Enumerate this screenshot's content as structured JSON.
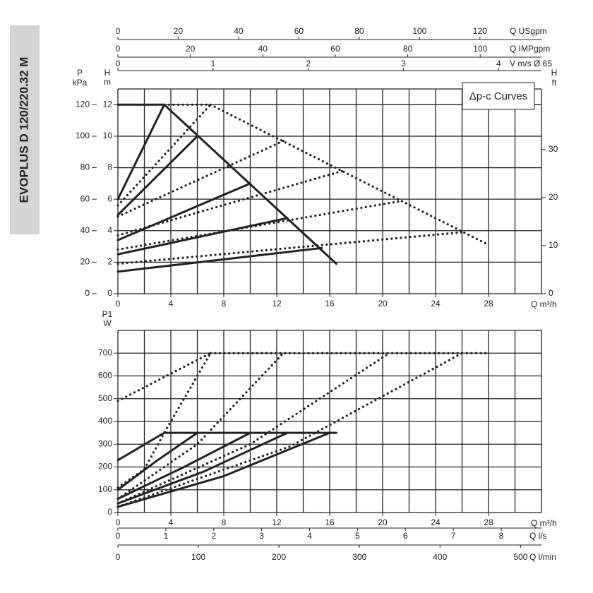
{
  "side_title": "EVOPLUS D 120/220.32 M",
  "chart_data": [
    {
      "type": "line",
      "annotation": "Δp-c Curves",
      "xlabel": "Q m³/h",
      "xlim": [
        0,
        32
      ],
      "xticks": [
        0,
        4,
        8,
        12,
        16,
        20,
        24,
        28
      ],
      "xgrid_step": 2,
      "ylabel": "H",
      "yunit": "m",
      "ylim": [
        0,
        13
      ],
      "yticks": [
        0,
        2,
        4,
        6,
        8,
        10,
        12
      ],
      "grid": true,
      "color": "#222222",
      "axes": [
        {
          "label": "Q USgpm",
          "side": "top",
          "lim": [
            0,
            140.4
          ],
          "ticks": [
            0,
            20,
            40,
            60,
            80,
            100,
            120
          ]
        },
        {
          "label": "Q IMPgpm",
          "side": "top",
          "lim": [
            0,
            116.9
          ],
          "ticks": [
            0,
            20,
            40,
            60,
            80,
            100
          ]
        },
        {
          "label": "V m/s Ø 65",
          "side": "top",
          "lim": [
            0,
            4.45
          ],
          "ticks": [
            0,
            1,
            2,
            3,
            4
          ]
        },
        {
          "label": "P",
          "unit": "kPa",
          "side": "left",
          "lim": [
            0,
            130
          ],
          "ticks": [
            0,
            20,
            40,
            60,
            80,
            100,
            120
          ]
        },
        {
          "label": "H",
          "unit": "ft",
          "side": "right",
          "lim": [
            0,
            42.65
          ],
          "ticks": [
            0,
            10,
            20,
            30
          ]
        }
      ],
      "series": [
        {
          "style": "solid",
          "x": [
            0,
            3.5
          ],
          "values": [
            12,
            12
          ]
        },
        {
          "style": "solid",
          "x": [
            3.5,
            16.5
          ],
          "values": [
            12,
            1.9
          ]
        },
        {
          "style": "solid",
          "x": [
            0,
            3.5
          ],
          "values": [
            6,
            12
          ]
        },
        {
          "style": "solid",
          "x": [
            0,
            6
          ],
          "values": [
            5,
            10
          ]
        },
        {
          "style": "solid",
          "x": [
            0,
            10
          ],
          "values": [
            3.4,
            7
          ]
        },
        {
          "style": "solid",
          "x": [
            0,
            12.8
          ],
          "values": [
            2.5,
            4.8
          ]
        },
        {
          "style": "solid",
          "x": [
            0,
            15.4
          ],
          "values": [
            1.4,
            2.9
          ]
        },
        {
          "style": "dotted",
          "x": [
            3.5,
            7
          ],
          "values": [
            12,
            12
          ]
        },
        {
          "style": "dotted",
          "x": [
            7,
            28
          ],
          "values": [
            12,
            3.1
          ]
        },
        {
          "style": "dotted",
          "x": [
            0,
            7
          ],
          "values": [
            5.6,
            12
          ]
        },
        {
          "style": "dotted",
          "x": [
            0,
            12.5
          ],
          "values": [
            4.9,
            9.7
          ]
        },
        {
          "style": "dotted",
          "x": [
            0,
            17
          ],
          "values": [
            3.7,
            7.8
          ]
        },
        {
          "style": "dotted",
          "x": [
            0,
            21.5
          ],
          "values": [
            2.8,
            5.9
          ]
        },
        {
          "style": "dotted",
          "x": [
            0,
            26
          ],
          "values": [
            1.9,
            3.9
          ]
        }
      ]
    },
    {
      "type": "line",
      "xlabel": "Q m³/h",
      "xlim": [
        0,
        32
      ],
      "xticks": [
        0,
        4,
        8,
        12,
        16,
        20,
        24,
        28
      ],
      "xgrid_step": 2,
      "ylabel": "P1",
      "yunit": "W",
      "ylim": [
        0,
        800
      ],
      "yticks": [
        0,
        100,
        200,
        300,
        400,
        500,
        600,
        700
      ],
      "grid": true,
      "color": "#222222",
      "axes": [
        {
          "label": "Q l/s",
          "side": "bottom",
          "lim": [
            0,
            8.84
          ],
          "ticks": [
            0,
            1,
            2,
            3,
            4,
            5,
            6,
            7,
            8
          ]
        },
        {
          "label": "Q l/min",
          "side": "bottom",
          "lim": [
            0,
            526
          ],
          "ticks": [
            0,
            100,
            200,
            300,
            400,
            500
          ]
        }
      ],
      "series": [
        {
          "style": "solid",
          "x": [
            3.5,
            16.5
          ],
          "values": [
            350,
            350
          ]
        },
        {
          "style": "solid",
          "x": [
            0,
            3.5
          ],
          "values": [
            230,
            350
          ]
        },
        {
          "style": "solid",
          "x": [
            0,
            3,
            6
          ],
          "values": [
            100,
            230,
            350
          ]
        },
        {
          "style": "solid",
          "x": [
            0,
            5,
            10
          ],
          "values": [
            60,
            200,
            350
          ]
        },
        {
          "style": "solid",
          "x": [
            0,
            6.5,
            12.8
          ],
          "values": [
            40,
            180,
            350
          ]
        },
        {
          "style": "solid",
          "x": [
            0,
            8,
            16
          ],
          "values": [
            25,
            160,
            350
          ]
        },
        {
          "style": "dotted",
          "x": [
            7,
            28
          ],
          "values": [
            700,
            700
          ]
        },
        {
          "style": "dotted",
          "x": [
            0,
            7
          ],
          "values": [
            490,
            700
          ]
        },
        {
          "style": "dotted",
          "x": [
            0,
            2,
            3.5,
            7
          ],
          "values": [
            110,
            190,
            350,
            700
          ]
        },
        {
          "style": "dotted",
          "x": [
            0,
            6,
            12.5
          ],
          "values": [
            60,
            300,
            700
          ]
        },
        {
          "style": "dotted",
          "x": [
            0,
            10,
            20.5
          ],
          "values": [
            40,
            300,
            700
          ]
        },
        {
          "style": "dotted",
          "x": [
            0,
            13,
            26
          ],
          "values": [
            25,
            290,
            700
          ]
        }
      ]
    }
  ]
}
